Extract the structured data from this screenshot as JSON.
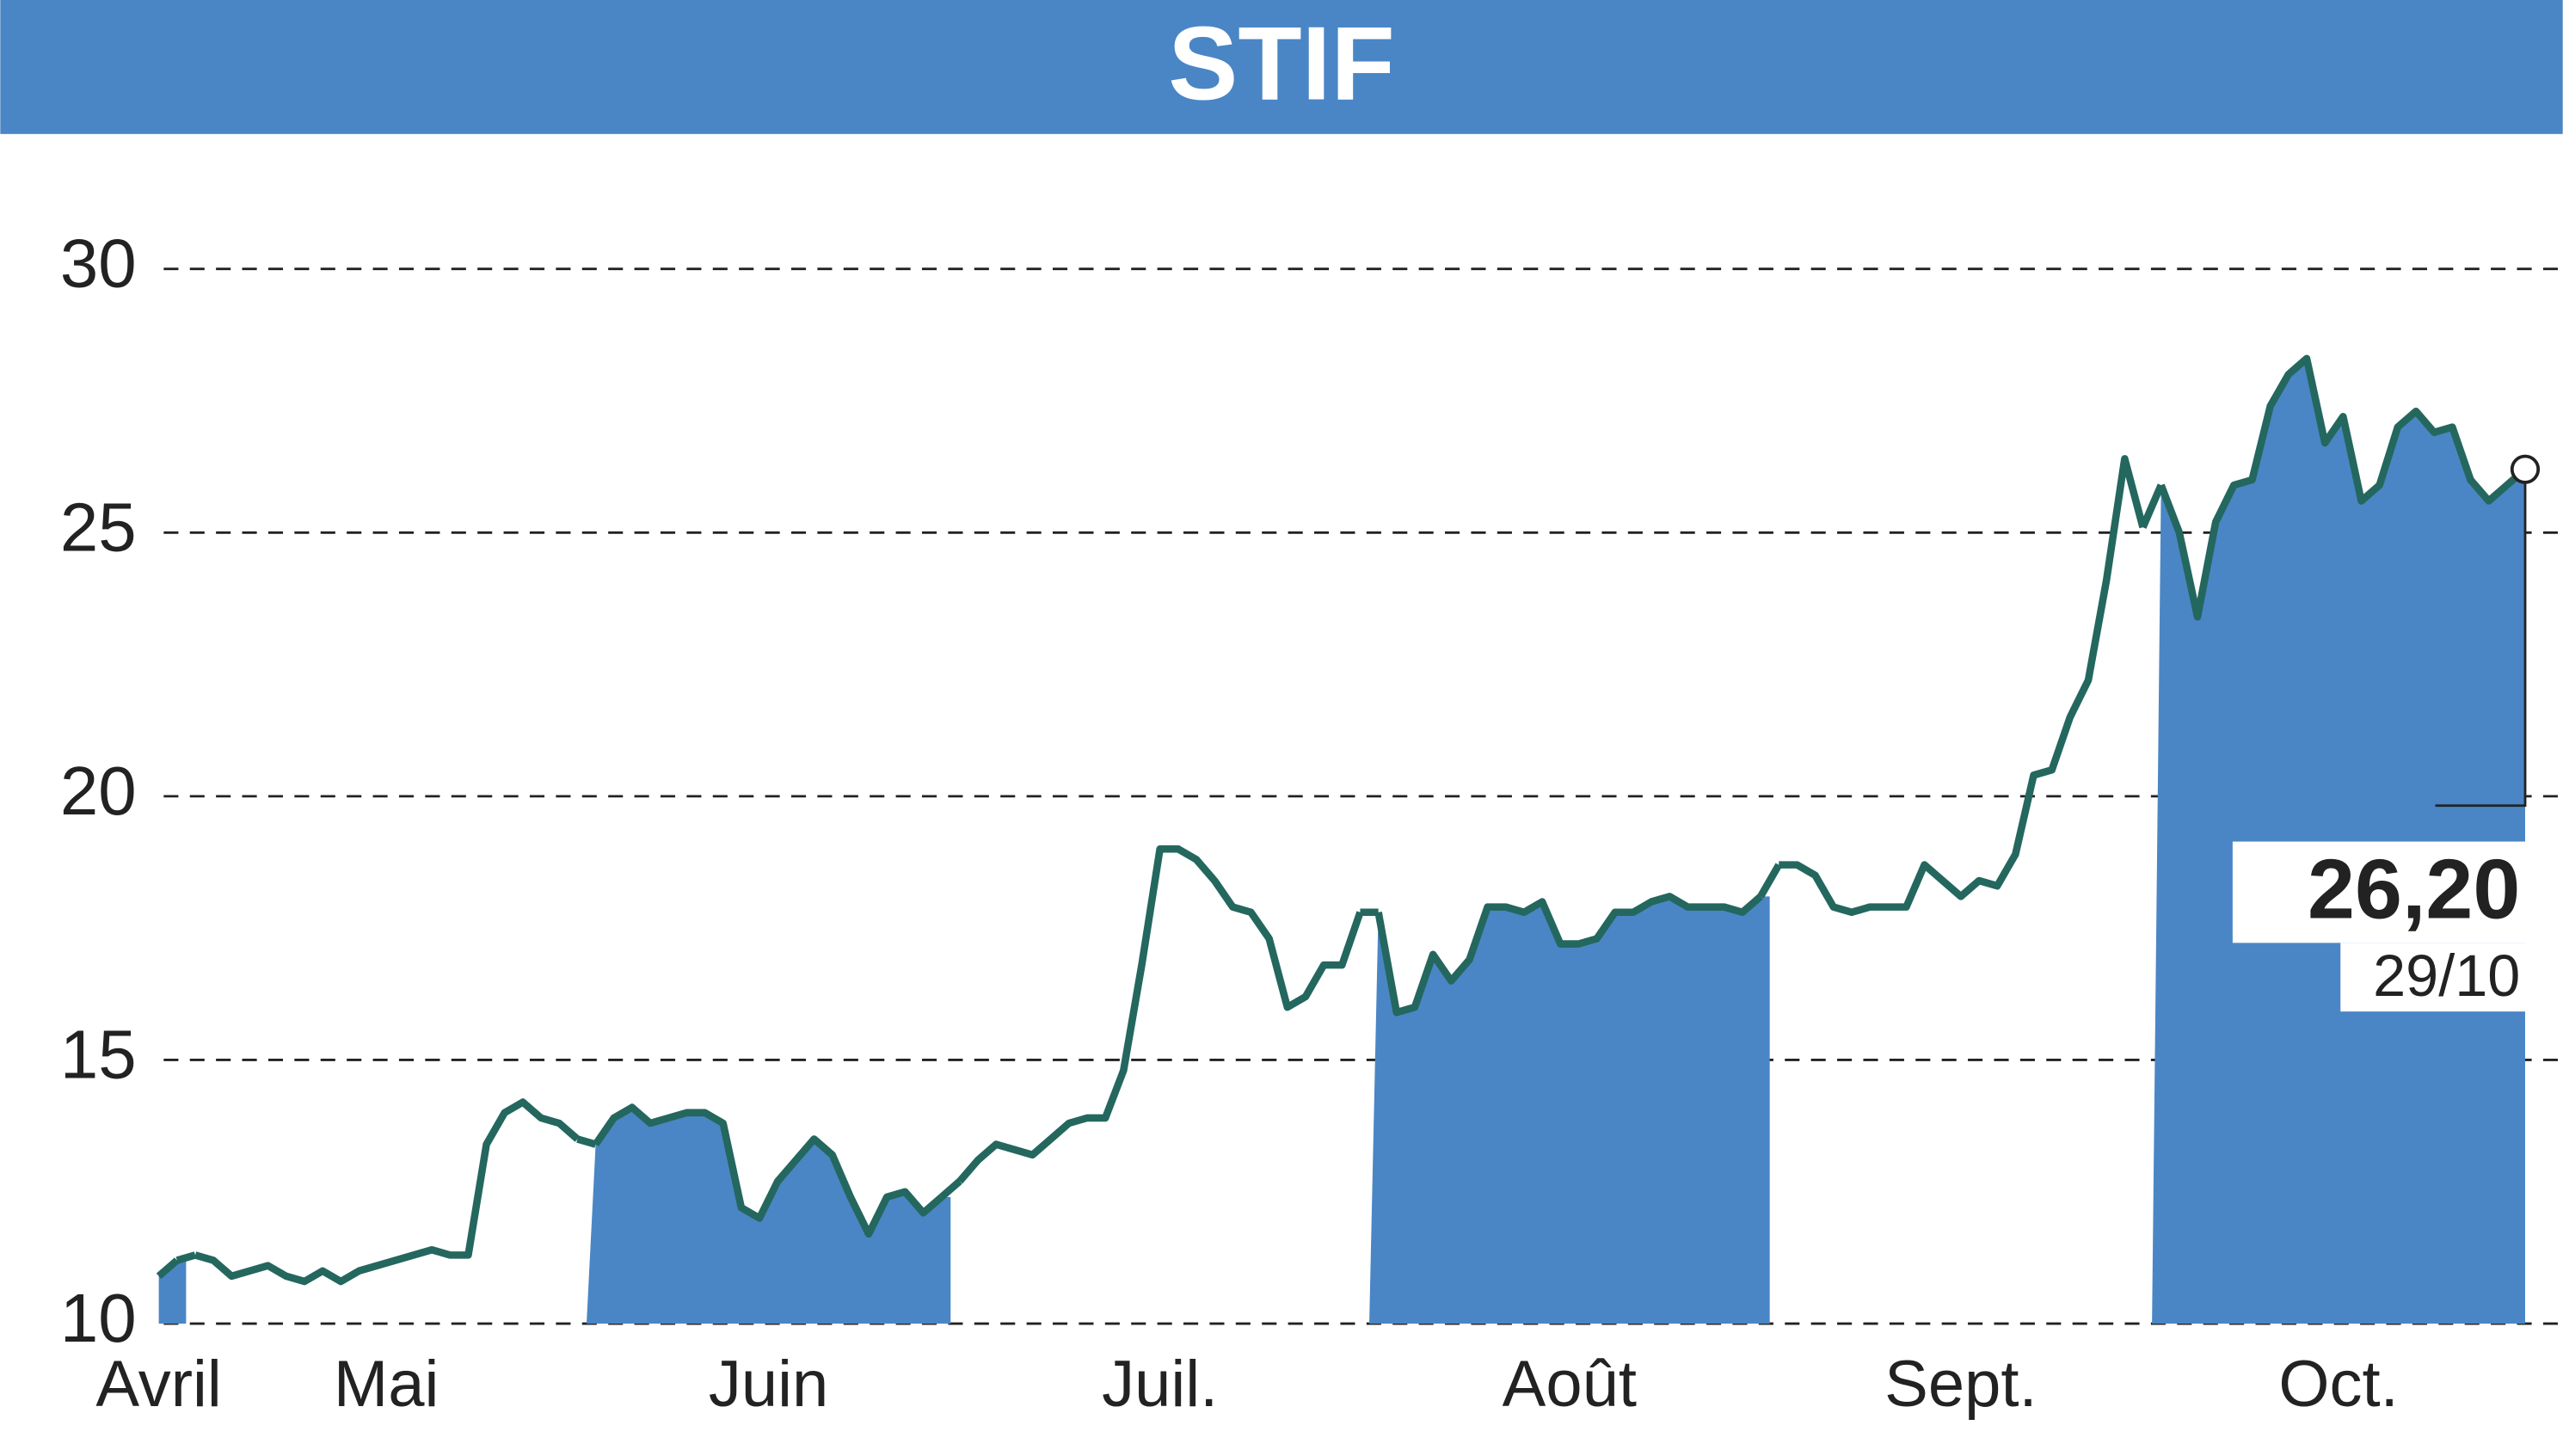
{
  "chart_data": {
    "type": "line",
    "title": "STIF",
    "months": [
      {
        "name": "Avril",
        "shaded": true,
        "values": [
          10.9,
          11.2
        ]
      },
      {
        "name": "Mai",
        "shaded": false,
        "values": [
          11.3,
          11.2,
          10.9,
          11.0,
          11.1,
          10.9,
          10.8,
          11.0,
          10.8,
          11.0,
          11.1,
          11.2,
          11.3,
          11.4,
          11.3,
          11.3,
          13.4,
          14.0,
          14.2,
          13.9,
          13.8,
          13.5
        ]
      },
      {
        "name": "Juin",
        "shaded": true,
        "values": [
          13.4,
          13.9,
          14.1,
          13.8,
          13.9,
          14.0,
          14.0,
          13.8,
          12.2,
          12.0,
          12.7,
          13.1,
          13.5,
          13.2,
          12.4,
          11.7,
          12.4,
          12.5,
          12.1,
          12.4
        ]
      },
      {
        "name": "Juil.",
        "shaded": false,
        "values": [
          12.7,
          13.1,
          13.4,
          13.3,
          13.2,
          13.5,
          13.8,
          13.9,
          13.9,
          14.8,
          16.8,
          19.0,
          19.0,
          18.8,
          18.4,
          17.9,
          17.8,
          17.3,
          16.0,
          16.2,
          16.8,
          16.8,
          17.8
        ]
      },
      {
        "name": "Août",
        "shaded": true,
        "values": [
          17.8,
          15.9,
          16.0,
          17.0,
          16.5,
          16.9,
          17.9,
          17.9,
          17.8,
          18.0,
          17.2,
          17.2,
          17.3,
          17.8,
          17.8,
          18.0,
          18.1,
          17.9,
          17.9,
          17.9,
          17.8,
          18.1
        ]
      },
      {
        "name": "Sept.",
        "shaded": false,
        "values": [
          18.7,
          18.7,
          18.5,
          17.9,
          17.8,
          17.9,
          17.9,
          17.9,
          18.7,
          18.4,
          18.1,
          18.4,
          18.3,
          18.9,
          20.4,
          20.5,
          21.5,
          22.2,
          24.1,
          26.4,
          25.1
        ]
      },
      {
        "name": "Oct.",
        "shaded": true,
        "values": [
          25.9,
          25.0,
          23.4,
          25.2,
          25.9,
          26.0,
          27.4,
          28.0,
          28.3,
          26.7,
          27.2,
          25.6,
          25.9,
          27.0,
          27.3,
          26.9,
          27.0,
          26.0,
          25.6,
          25.9,
          26.2
        ]
      }
    ],
    "last_value_label": "26,20",
    "last_date": "29/10",
    "line_color": "#24675e",
    "area_color": "#4a86c5",
    "ylim": [
      10,
      32
    ],
    "yticks": [
      10,
      15,
      20,
      25,
      30
    ],
    "grid": true
  }
}
